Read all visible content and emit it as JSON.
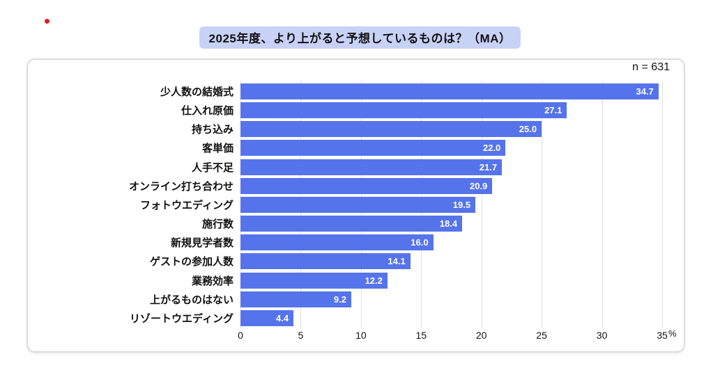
{
  "page": {
    "dot_color": "#e31b1b"
  },
  "header": {
    "title": "2025年度、より上がると予想しているものは？（MA）"
  },
  "chart_data": {
    "type": "bar",
    "orientation": "horizontal",
    "title": "2025年度、より上がると予想しているものは？（MA）",
    "sample_label": "n = 631",
    "categories": [
      "少人数の結婚式",
      "仕入れ原価",
      "持ち込み",
      "客単価",
      "人手不足",
      "オンライン打ち合わせ",
      "フォトウエディング",
      "施行数",
      "新規見学者数",
      "ゲストの参加人数",
      "業務効率",
      "上がるものはない",
      "リゾートウエディング"
    ],
    "values": [
      34.7,
      27.1,
      25.0,
      22.0,
      21.7,
      20.9,
      19.5,
      18.4,
      16.0,
      14.1,
      12.2,
      9.2,
      4.4
    ],
    "value_labels": [
      "34.7",
      "27.1",
      "25.0",
      "22.0",
      "21.7",
      "20.9",
      "19.5",
      "18.4",
      "16.0",
      "14.1",
      "12.2",
      "9.2",
      "4.4"
    ],
    "xlim": [
      0,
      35
    ],
    "xticks": [
      0,
      5,
      10,
      15,
      20,
      25,
      30,
      35
    ],
    "x_unit": "%",
    "grid": true,
    "legend": "none",
    "bar_color": "#5573ea",
    "value_label_color": "#ffffff",
    "title_highlight_color": "#c8d2f7",
    "gridline_color": "#e0e0e0"
  }
}
